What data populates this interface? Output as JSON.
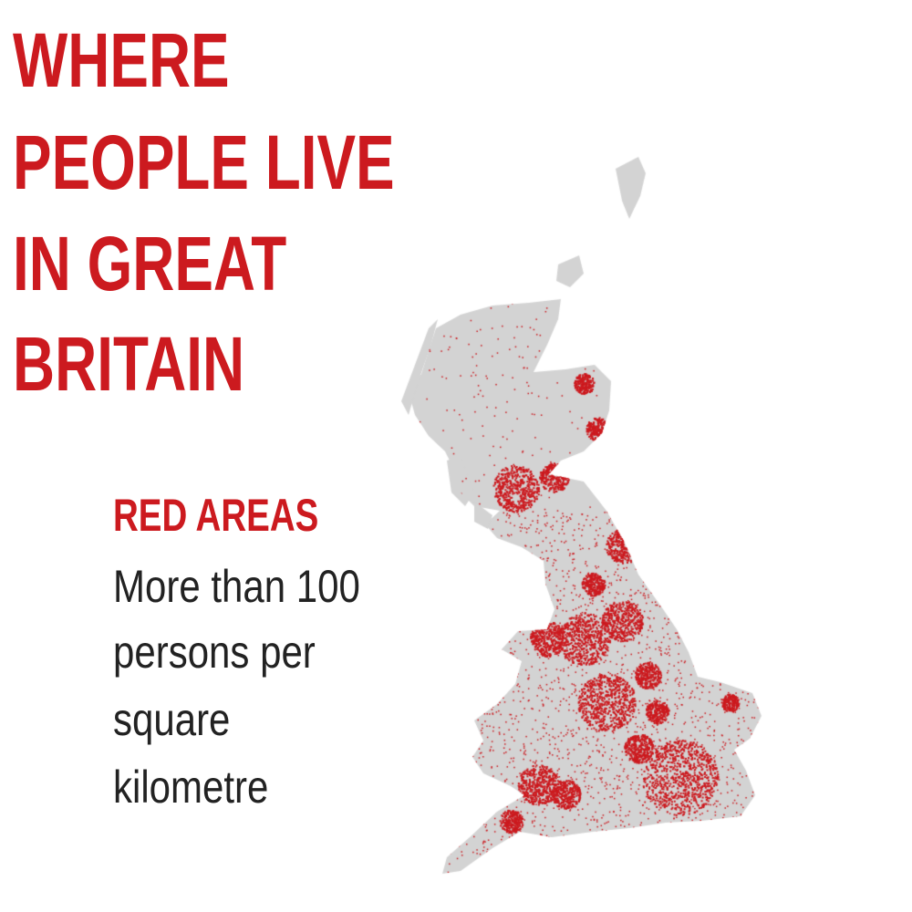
{
  "title": {
    "lines": [
      "WHERE",
      "PEOPLE LIVE",
      "IN GREAT",
      "BRITAIN"
    ]
  },
  "legend": {
    "heading": "RED AREAS",
    "lines": [
      "More than 100",
      "persons per",
      "square",
      "kilometre"
    ]
  },
  "map": {
    "region": "Great Britain",
    "land_color": "#d3d3d3",
    "highlight_color": "#cc1a1f",
    "highlight_meaning": "More than 100 persons per square kilometre"
  }
}
